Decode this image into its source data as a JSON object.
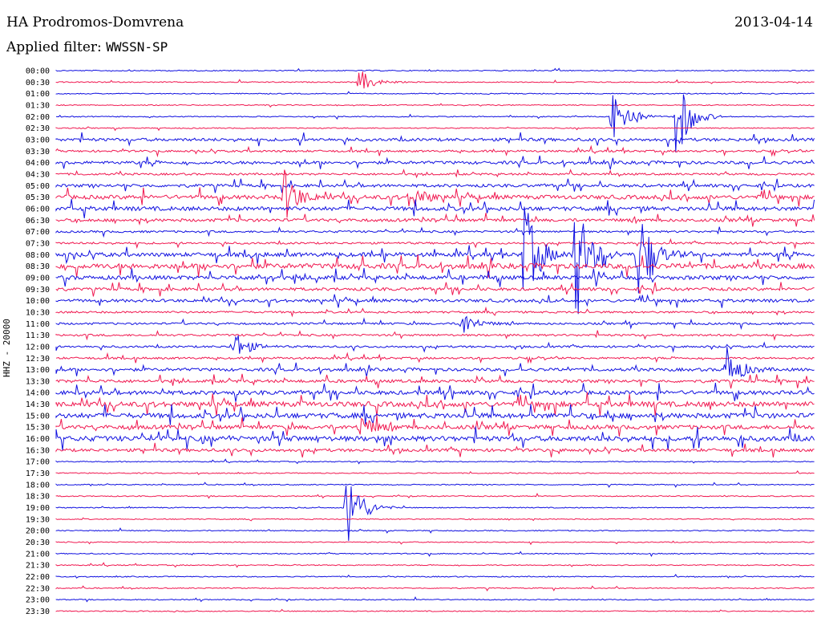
{
  "header": {
    "station": "HA Prodromos-Domvrena",
    "date": "2013-04-14",
    "filter_label": "Applied filter:",
    "filter_value": "WWSSN-SP"
  },
  "chart_data": {
    "type": "line",
    "title": "HA Prodromos-Domvrena",
    "ylabel": "HHZ - 20000",
    "colors": [
      "#1010e0",
      "#f01850"
    ],
    "rows": [
      "00:00",
      "00:30",
      "01:00",
      "01:30",
      "02:00",
      "02:30",
      "03:00",
      "03:30",
      "04:00",
      "04:30",
      "05:00",
      "05:30",
      "06:00",
      "06:30",
      "07:00",
      "07:30",
      "08:00",
      "08:30",
      "09:00",
      "09:30",
      "10:00",
      "10:30",
      "11:00",
      "11:30",
      "12:00",
      "12:30",
      "13:00",
      "13:30",
      "14:00",
      "14:30",
      "15:00",
      "15:30",
      "16:00",
      "16:30",
      "17:00",
      "17:30",
      "18:00",
      "18:30",
      "19:00",
      "19:30",
      "20:00",
      "20:30",
      "21:00",
      "21:30",
      "22:00",
      "22:30",
      "23:00",
      "23:30"
    ],
    "noise_level": [
      1,
      1,
      1,
      1,
      1,
      1,
      3,
      2,
      3,
      2,
      3,
      4,
      4,
      3,
      2,
      2,
      4,
      5,
      4,
      3,
      3,
      2,
      2,
      2,
      2,
      2,
      3,
      3,
      4,
      5,
      5,
      4,
      5,
      3,
      1,
      1,
      1,
      1,
      1,
      1,
      1,
      1,
      1,
      1,
      1,
      1,
      1,
      1
    ],
    "events": [
      {
        "row": 1,
        "minute": 12,
        "amplitude": 16
      },
      {
        "row": 4,
        "minute": 22,
        "amplitude": 52
      },
      {
        "row": 4,
        "minute": 24.5,
        "amplitude": 60
      },
      {
        "row": 11,
        "minute": 9,
        "amplitude": 35
      },
      {
        "row": 11,
        "minute": 14,
        "amplitude": 18
      },
      {
        "row": 16,
        "minute": 18.5,
        "amplitude": 70
      },
      {
        "row": 16,
        "minute": 20.5,
        "amplitude": 85
      },
      {
        "row": 16,
        "minute": 23,
        "amplitude": 65
      },
      {
        "row": 22,
        "minute": 16,
        "amplitude": 18
      },
      {
        "row": 24,
        "minute": 7,
        "amplitude": 22
      },
      {
        "row": 26,
        "minute": 26.5,
        "amplitude": 30
      },
      {
        "row": 31,
        "minute": 12,
        "amplitude": 16
      },
      {
        "row": 38,
        "minute": 11.5,
        "amplitude": 60
      }
    ]
  }
}
